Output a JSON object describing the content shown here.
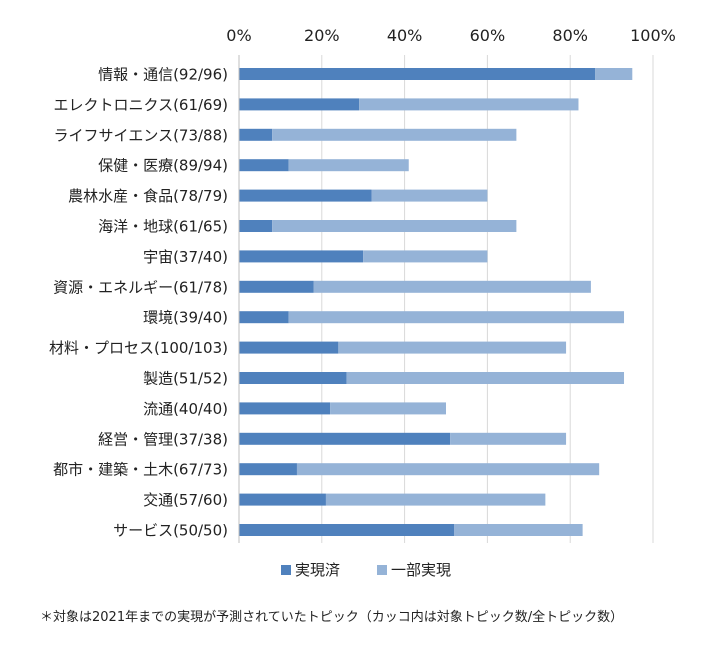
{
  "chart_data": {
    "type": "bar",
    "orientation": "horizontal",
    "stacked": true,
    "categories": [
      "情報・通信(92/96)",
      "エレクトロニクス(61/69)",
      "ライフサイエンス(73/88)",
      "保健・医療(89/94)",
      "農林水産・食品(78/79)",
      "海洋・地球(61/65)",
      "宇宙(37/40)",
      "資源・エネルギー(61/78)",
      "環境(39/40)",
      "材料・プロセス(100/103)",
      "製造(51/52)",
      "流通(40/40)",
      "経営・管理(37/38)",
      "都市・建築・土木(67/73)",
      "交通(57/60)",
      "サービス(50/50)"
    ],
    "series": [
      {
        "name": "実現済",
        "color": "#4f81bd",
        "values": [
          86,
          29,
          8,
          12,
          32,
          8,
          30,
          18,
          12,
          24,
          26,
          22,
          51,
          14,
          21,
          52
        ]
      },
      {
        "name": "一部実現",
        "color": "#95b3d7",
        "values": [
          9,
          53,
          59,
          29,
          28,
          59,
          30,
          67,
          81,
          55,
          67,
          28,
          28,
          73,
          53,
          31
        ]
      }
    ],
    "x_ticks": [
      "0%",
      "20%",
      "40%",
      "60%",
      "80%",
      "100%"
    ],
    "xlim": [
      0,
      100
    ],
    "grid": true,
    "legend_position": "bottom"
  },
  "footnote": "＊対象は2021年までの実現が予測されていたトピック（カッコ内は対象トピック数/全トピック数）"
}
